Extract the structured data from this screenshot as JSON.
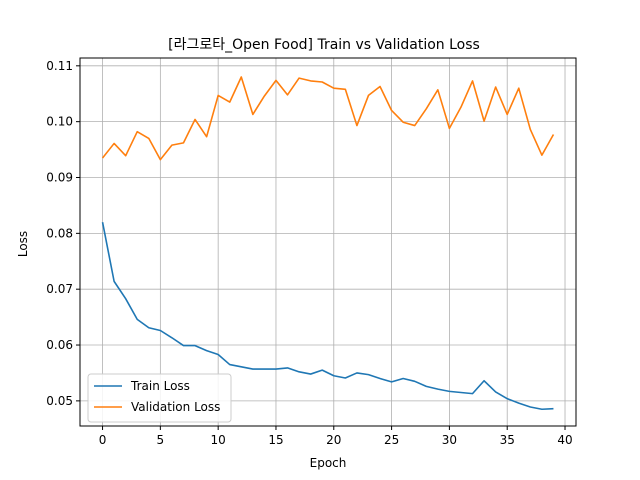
{
  "chart_data": {
    "type": "line",
    "title": "[라그로타_Open Food] Train vs Validation Loss",
    "xlabel": "Epoch",
    "ylabel": "Loss",
    "xlim": [
      -1.95,
      40.95
    ],
    "ylim": [
      0.0455,
      0.1114
    ],
    "xticks": [
      0,
      5,
      10,
      15,
      20,
      25,
      30,
      35,
      40
    ],
    "yticks": [
      0.05,
      0.06,
      0.07,
      0.08,
      0.09,
      0.1,
      0.11
    ],
    "ytick_labels": [
      "0.05",
      "0.06",
      "0.07",
      "0.08",
      "0.09",
      "0.10",
      "0.11"
    ],
    "grid": true,
    "legend_position": "lower-left",
    "x": [
      0,
      1,
      2,
      3,
      4,
      5,
      6,
      7,
      8,
      9,
      10,
      11,
      12,
      13,
      14,
      15,
      16,
      17,
      18,
      19,
      20,
      21,
      22,
      23,
      24,
      25,
      26,
      27,
      28,
      29,
      30,
      31,
      32,
      33,
      34,
      35,
      36,
      37,
      38,
      39
    ],
    "series": [
      {
        "name": "Train Loss",
        "color": "#1f77b4",
        "values": [
          0.082,
          0.0714,
          0.0683,
          0.0646,
          0.0631,
          0.0626,
          0.0613,
          0.0599,
          0.0599,
          0.059,
          0.0583,
          0.0565,
          0.0561,
          0.0557,
          0.0557,
          0.0557,
          0.0559,
          0.0552,
          0.0548,
          0.0555,
          0.0545,
          0.0541,
          0.055,
          0.0547,
          0.054,
          0.0534,
          0.054,
          0.0535,
          0.0526,
          0.0521,
          0.0517,
          0.0515,
          0.0513,
          0.0536,
          0.0516,
          0.0504,
          0.0496,
          0.0489,
          0.0485,
          0.0486
        ]
      },
      {
        "name": "Validation Loss",
        "color": "#ff7f0e",
        "values": [
          0.0935,
          0.0961,
          0.0939,
          0.0982,
          0.097,
          0.0932,
          0.0958,
          0.0962,
          0.1004,
          0.0973,
          0.1047,
          0.1035,
          0.108,
          0.1013,
          0.1046,
          0.1074,
          0.1048,
          0.1078,
          0.1073,
          0.1071,
          0.106,
          0.1058,
          0.0993,
          0.1047,
          0.1063,
          0.102,
          0.0999,
          0.0993,
          0.1023,
          0.1057,
          0.0988,
          0.1026,
          0.1073,
          0.1001,
          0.1062,
          0.1013,
          0.106,
          0.0986,
          0.094,
          0.0977
        ]
      }
    ]
  }
}
